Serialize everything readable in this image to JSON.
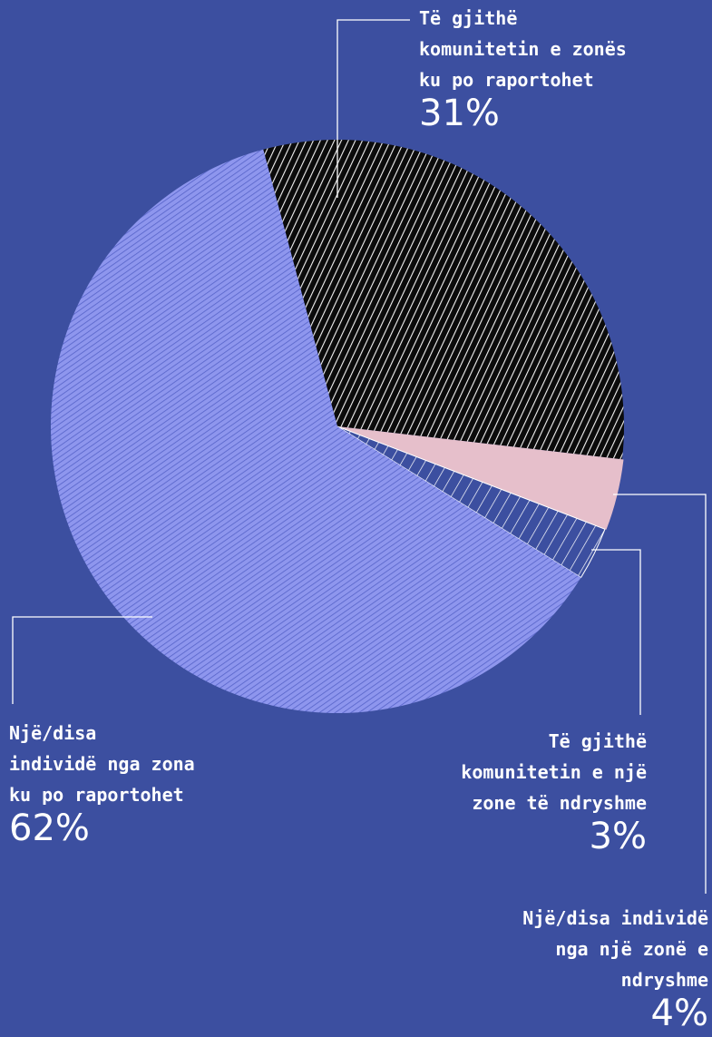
{
  "colors": {
    "background": "#3c4fa0",
    "community_local": "#111111",
    "individuals_local": "#7d86e6",
    "individuals_other": "#e6bfcb",
    "community_other": "#3c4fa0",
    "stroke": "#ffffff"
  },
  "chart_data": {
    "type": "pie",
    "title": "",
    "slices": [
      {
        "label": "Të gjithë komunitetin e zonës ku po raportohet",
        "value": 31,
        "display": "31%"
      },
      {
        "label": "Një/disa individë nga një zonë e ndryshme",
        "value": 4,
        "display": "4%"
      },
      {
        "label": "Të gjithë komunitetin e një zone të ndryshme",
        "value": 3,
        "display": "3%"
      },
      {
        "label": "Një/disa individë nga zona ku po raportohet",
        "value": 62,
        "display": "62%"
      }
    ]
  },
  "labels": {
    "community_local": {
      "lines": [
        "Të gjithë",
        "komunitetin e zonës",
        "ku po raportohet"
      ],
      "pct": "31%"
    },
    "individuals_local": {
      "lines": [
        "Një/disa",
        "individë nga zona",
        "ku po raportohet"
      ],
      "pct": "62%"
    },
    "community_other": {
      "lines": [
        "Të gjithë",
        "komunitetin e një",
        "zone të ndryshme"
      ],
      "pct": "3%"
    },
    "individuals_other": {
      "lines": [
        "Një/disa individë",
        "nga një zonë e",
        "ndryshme"
      ],
      "pct": "4%"
    }
  }
}
